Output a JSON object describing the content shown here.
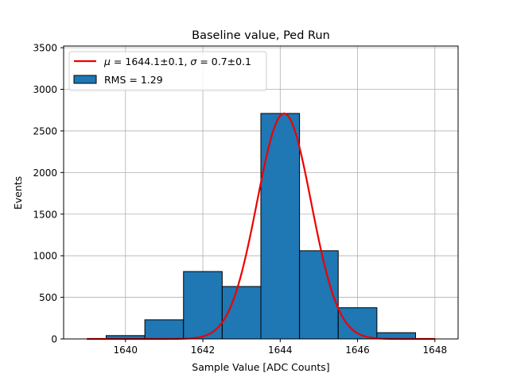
{
  "chart_data": {
    "type": "bar",
    "title": "Baseline value, Ped Run",
    "xlabel": "Sample Value [ADC Counts]",
    "ylabel": "Events",
    "xlim": [
      1638.4,
      1648.6
    ],
    "ylim": [
      0,
      3520
    ],
    "grid": true,
    "xticks": [
      1640,
      1642,
      1644,
      1646,
      1648
    ],
    "yticks": [
      0,
      500,
      1000,
      1500,
      2000,
      2500,
      3000,
      3500
    ],
    "histogram": {
      "name": "RMS = 1.29",
      "bin_edges": [
        1638.5,
        1639.5,
        1640.5,
        1641.5,
        1642.5,
        1643.5,
        1644.5,
        1645.5,
        1646.5,
        1647.5
      ],
      "values": [
        0,
        40,
        230,
        810,
        630,
        2710,
        1060,
        375,
        75
      ],
      "color": "#1f77b4"
    },
    "fit": {
      "name": "$\\mu = 1644.1 \\pm 0.1$, $\\sigma = 0.7 \\pm 0.1$",
      "legend_mu_symbol": "μ",
      "legend_mu_text": " = 1644.1±0.1, ",
      "legend_sigma_symbol": "σ",
      "legend_sigma_text": " = 0.7±0.1",
      "type": "gaussian",
      "mu": 1644.1,
      "sigma": 0.7,
      "amplitude": 2710,
      "x_range": [
        1639,
        1648
      ],
      "color": "#ee0000"
    },
    "legend_position": "upper-left"
  }
}
